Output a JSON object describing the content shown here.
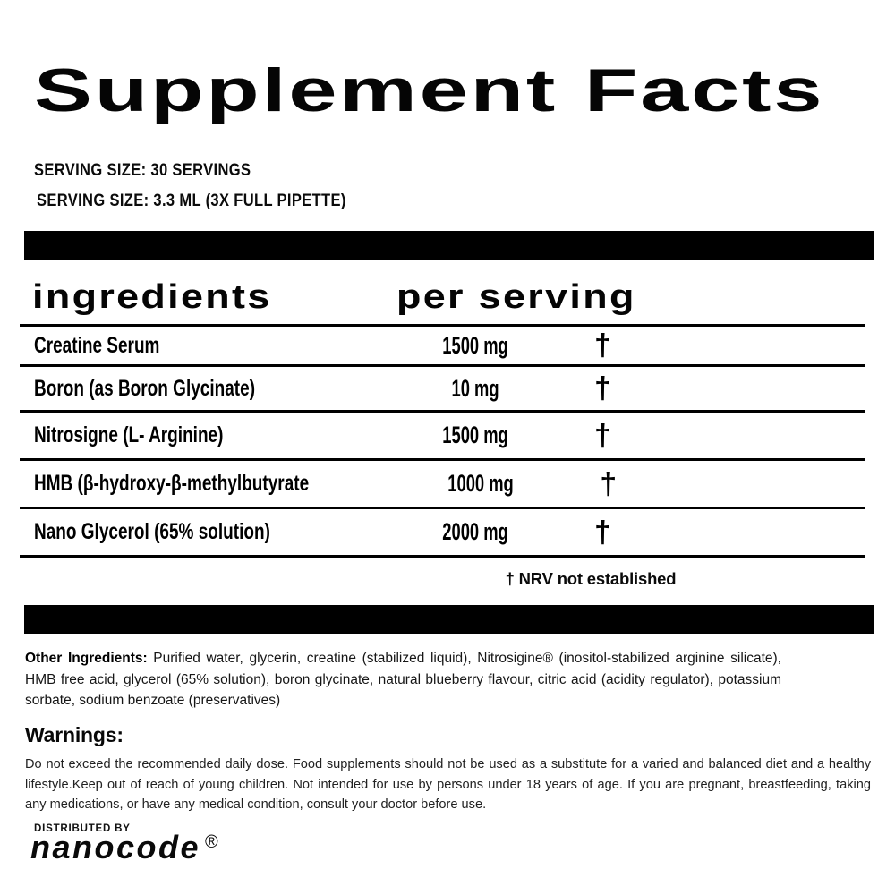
{
  "title": "Supplement Facts",
  "serving": {
    "line1": "SERVING SIZE: 30 SERVINGS",
    "line2": "SERVING SIZE: 3.3 ML (3X FULL PIPETTE)"
  },
  "table": {
    "col_ingredients": "ingredients",
    "col_per_serving": "per serving",
    "rows": [
      {
        "name": "Creatine Serum",
        "amount": "1500 mg",
        "nrv": "†"
      },
      {
        "name": "Boron (as Boron Glycinate)",
        "amount": "10 mg",
        "nrv": "†"
      },
      {
        "name": "Nitrosigne (L- Arginine)",
        "amount": "1500 mg",
        "nrv": "†"
      },
      {
        "name": "HMB (β-hydroxy-β-methylbutyrate",
        "amount": "1000 mg",
        "nrv": "†"
      },
      {
        "name": "Nano Glycerol (65% solution)",
        "amount": "2000 mg",
        "nrv": "†"
      }
    ],
    "footnote": "† NRV not established"
  },
  "other_ingredients": {
    "label": "Other Ingredients:",
    "text": " Purified water, glycerin, creatine (stabilized liquid), Nitrosigine® (inositol-stabilized arginine silicate), HMB free acid, glycerol (65% solution), boron glycinate, natural blueberry flavour, citric acid (acidity regulator), potassium sorbate, sodium benzoate (preservatives)"
  },
  "warnings": {
    "heading": "Warnings:",
    "text": "Do not exceed the recommended daily dose. Food supplements should not be used as a substitute for a varied and balanced diet and a healthy lifestyle.Keep out of reach of young children. Not intended for use by persons under 18 years of age. If you are pregnant, breastfeeding, taking any medications, or have any medical condition,  consult your doctor before use."
  },
  "distributor": {
    "label": "DISTRIBUTED BY",
    "brand": "nanocode",
    "registered_mark": "®"
  },
  "colors": {
    "ink": "#000000",
    "paper": "#ffffff"
  }
}
